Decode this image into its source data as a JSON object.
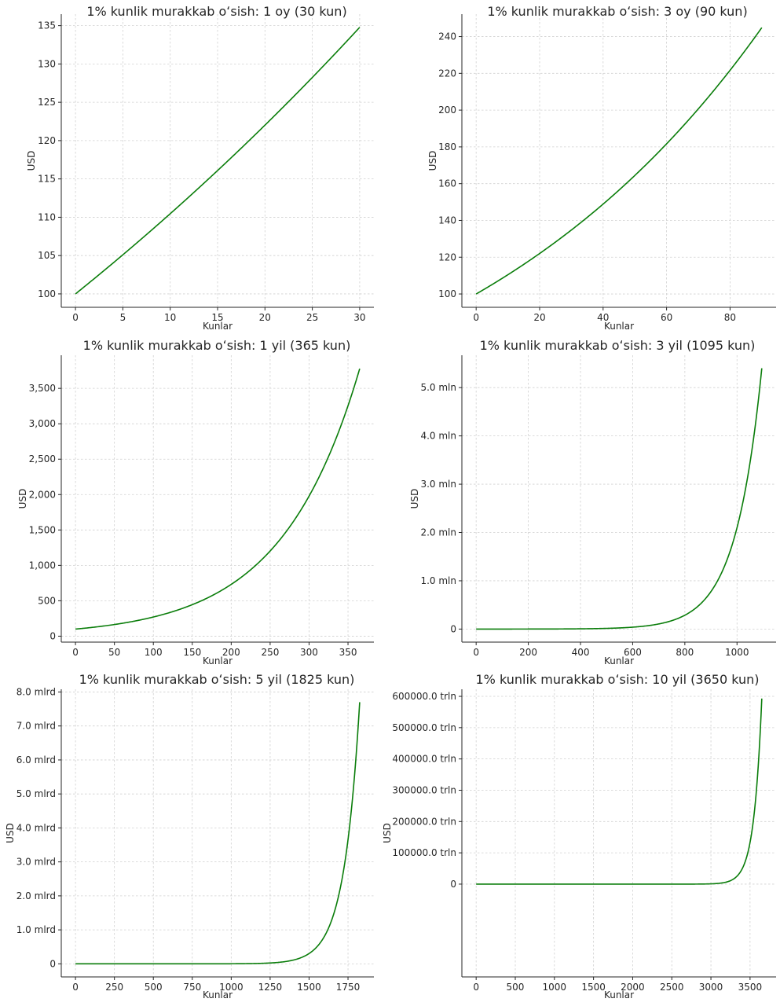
{
  "colors": {
    "line": "#0a7d0a",
    "grid": "#d0d0d0",
    "axis": "#262626"
  },
  "chart_data": [
    {
      "type": "line",
      "title": "1% kunlik murakkab oʻsish: 1 oy (30 kun)",
      "xlabel": "Kunlar",
      "ylabel": "USD",
      "grid": true,
      "formula": {
        "initial": 100,
        "daily_rate": 0.01,
        "days": 30
      },
      "x_range": [
        0,
        30
      ],
      "xlim": [
        -1.5,
        31.5
      ],
      "ylim": [
        98.25,
        136.5
      ],
      "y_end": 134.78,
      "xticks": [
        {
          "value": 0,
          "label": "0"
        },
        {
          "value": 5,
          "label": "5"
        },
        {
          "value": 10,
          "label": "10"
        },
        {
          "value": 15,
          "label": "15"
        },
        {
          "value": 20,
          "label": "20"
        },
        {
          "value": 25,
          "label": "25"
        },
        {
          "value": 30,
          "label": "30"
        }
      ],
      "yticks": [
        {
          "value": 100,
          "label": "100"
        },
        {
          "value": 105,
          "label": "105"
        },
        {
          "value": 110,
          "label": "110"
        },
        {
          "value": 115,
          "label": "115"
        },
        {
          "value": 120,
          "label": "120"
        },
        {
          "value": 125,
          "label": "125"
        },
        {
          "value": 130,
          "label": "130"
        },
        {
          "value": 135,
          "label": "135"
        }
      ]
    },
    {
      "type": "line",
      "title": "1% kunlik murakkab oʻsish: 3 oy (90 kun)",
      "xlabel": "Kunlar",
      "ylabel": "USD",
      "grid": true,
      "formula": {
        "initial": 100,
        "daily_rate": 0.01,
        "days": 90
      },
      "x_range": [
        0,
        90
      ],
      "xlim": [
        -4.5,
        94.5
      ],
      "ylim": [
        92.75,
        252.2
      ],
      "y_end": 244.86,
      "xticks": [
        {
          "value": 0,
          "label": "0"
        },
        {
          "value": 20,
          "label": "20"
        },
        {
          "value": 40,
          "label": "40"
        },
        {
          "value": 60,
          "label": "60"
        },
        {
          "value": 80,
          "label": "80"
        }
      ],
      "yticks": [
        {
          "value": 100,
          "label": "100"
        },
        {
          "value": 120,
          "label": "120"
        },
        {
          "value": 140,
          "label": "140"
        },
        {
          "value": 160,
          "label": "160"
        },
        {
          "value": 180,
          "label": "180"
        },
        {
          "value": 200,
          "label": "200"
        },
        {
          "value": 220,
          "label": "220"
        },
        {
          "value": 240,
          "label": "240"
        }
      ]
    },
    {
      "type": "line",
      "title": "1% kunlik murakkab oʻsish: 1 yil (365 kun)",
      "xlabel": "Kunlar",
      "ylabel": "USD",
      "grid": true,
      "formula": {
        "initial": 100,
        "daily_rate": 0.01,
        "days": 365
      },
      "x_range": [
        0,
        365
      ],
      "xlim": [
        -18.25,
        383.25
      ],
      "ylim": [
        -84,
        3968
      ],
      "y_end": 3778,
      "xticks": [
        {
          "value": 0,
          "label": "0"
        },
        {
          "value": 50,
          "label": "50"
        },
        {
          "value": 100,
          "label": "100"
        },
        {
          "value": 150,
          "label": "150"
        },
        {
          "value": 200,
          "label": "200"
        },
        {
          "value": 250,
          "label": "250"
        },
        {
          "value": 300,
          "label": "300"
        },
        {
          "value": 350,
          "label": "350"
        }
      ],
      "yticks": [
        {
          "value": 0,
          "label": "0"
        },
        {
          "value": 500,
          "label": "500"
        },
        {
          "value": 1000,
          "label": "1,000"
        },
        {
          "value": 1500,
          "label": "1,500"
        },
        {
          "value": 2000,
          "label": "2,000"
        },
        {
          "value": 2500,
          "label": "2,500"
        },
        {
          "value": 3000,
          "label": "3,000"
        },
        {
          "value": 3500,
          "label": "3,500"
        }
      ]
    },
    {
      "type": "line",
      "title": "1% kunlik murakkab oʻsish: 3 yil (1095 kun)",
      "xlabel": "Kunlar",
      "ylabel": "USD",
      "grid": true,
      "formula": {
        "initial": 100,
        "daily_rate": 0.01,
        "days": 1095
      },
      "x_range": [
        0,
        1095
      ],
      "xlim": [
        -54.75,
        1149.75
      ],
      "ylim": [
        -270000,
        5670000
      ],
      "y_end": 5400000,
      "xticks": [
        {
          "value": 0,
          "label": "0"
        },
        {
          "value": 200,
          "label": "200"
        },
        {
          "value": 400,
          "label": "400"
        },
        {
          "value": 600,
          "label": "600"
        },
        {
          "value": 800,
          "label": "800"
        },
        {
          "value": 1000,
          "label": "1000"
        }
      ],
      "yticks": [
        {
          "value": 0,
          "label": "0"
        },
        {
          "value": 1000000,
          "label": "1.0 mln"
        },
        {
          "value": 2000000,
          "label": "2.0 mln"
        },
        {
          "value": 3000000,
          "label": "3.0 mln"
        },
        {
          "value": 4000000,
          "label": "4.0 mln"
        },
        {
          "value": 5000000,
          "label": "5.0 mln"
        }
      ]
    },
    {
      "type": "line",
      "title": "1% kunlik murakkab oʻsish: 5 yil (1825 kun)",
      "xlabel": "Kunlar",
      "ylabel": "USD",
      "grid": true,
      "formula": {
        "initial": 100,
        "daily_rate": 0.01,
        "days": 1825
      },
      "x_range": [
        0,
        1825
      ],
      "xlim": [
        -91.25,
        1916.25
      ],
      "ylim": [
        -385000000,
        8080000000
      ],
      "y_end": 7700000000,
      "xticks": [
        {
          "value": 0,
          "label": "0"
        },
        {
          "value": 250,
          "label": "250"
        },
        {
          "value": 500,
          "label": "500"
        },
        {
          "value": 750,
          "label": "750"
        },
        {
          "value": 1000,
          "label": "1000"
        },
        {
          "value": 1250,
          "label": "1250"
        },
        {
          "value": 1500,
          "label": "1500"
        },
        {
          "value": 1750,
          "label": "1750"
        }
      ],
      "yticks": [
        {
          "value": 0,
          "label": "0"
        },
        {
          "value": 1000000000,
          "label": "1.0 mlrd"
        },
        {
          "value": 2000000000,
          "label": "2.0 mlrd"
        },
        {
          "value": 3000000000,
          "label": "3.0 mlrd"
        },
        {
          "value": 4000000000,
          "label": "4.0 mlrd"
        },
        {
          "value": 5000000000,
          "label": "5.0 mlrd"
        },
        {
          "value": 6000000000,
          "label": "6.0 mlrd"
        },
        {
          "value": 7000000000,
          "label": "7.0 mlrd"
        },
        {
          "value": 8000000000,
          "label": "8.0 mlrd"
        }
      ]
    },
    {
      "type": "line",
      "title": "1% kunlik murakkab oʻsish: 10 yil (3650 kun)",
      "xlabel": "Kunlar",
      "ylabel": "USD",
      "grid": true,
      "formula": {
        "initial": 100,
        "daily_rate": 0.01,
        "days": 3650
      },
      "x_range": [
        0,
        3650
      ],
      "xlim": [
        -182.5,
        3832.5
      ],
      "ylim": [
        -2.965e+17,
        6.2265e+17
      ],
      "y_end": 5.93e+17,
      "xticks": [
        {
          "value": 0,
          "label": "0"
        },
        {
          "value": 500,
          "label": "500"
        },
        {
          "value": 1000,
          "label": "1000"
        },
        {
          "value": 1500,
          "label": "1500"
        },
        {
          "value": 2000,
          "label": "2000"
        },
        {
          "value": 2500,
          "label": "2500"
        },
        {
          "value": 3000,
          "label": "3000"
        },
        {
          "value": 3500,
          "label": "3500"
        }
      ],
      "yticks": [
        {
          "value": 0,
          "label": "0"
        },
        {
          "value": 1e+17,
          "label": "100000.0 trln"
        },
        {
          "value": 2e+17,
          "label": "200000.0 trln"
        },
        {
          "value": 3e+17,
          "label": "300000.0 trln"
        },
        {
          "value": 4e+17,
          "label": "400000.0 trln"
        },
        {
          "value": 5e+17,
          "label": "500000.0 trln"
        },
        {
          "value": 6e+17,
          "label": "600000.0 trln"
        }
      ]
    }
  ]
}
